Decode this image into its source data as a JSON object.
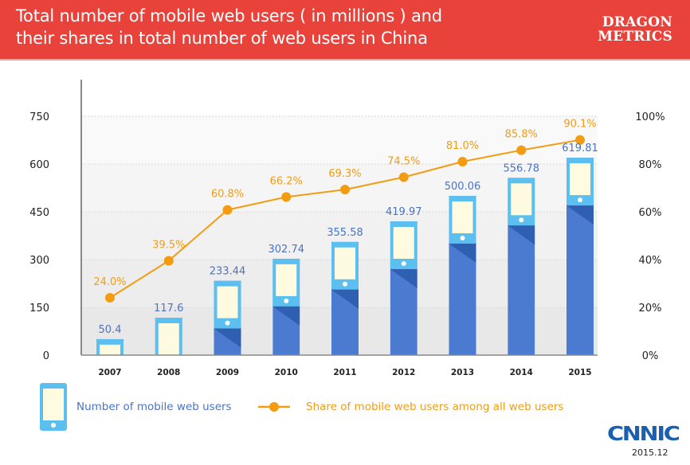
{
  "header": {
    "title_line1": "Total number of mobile web users ( in millions ) and",
    "title_line2": "their shares in total number of web users in China",
    "brand_line1": "DRAGON",
    "brand_line2": "METRICS",
    "background_color": "#e8423a"
  },
  "footer": {
    "source_logo": "CNNIC",
    "source_date": "2015.12"
  },
  "colors": {
    "bar_dark": "#4a7bd0",
    "bar_shadow": "#2f5fb0",
    "phone_frame": "#5bc0ef",
    "phone_screen": "#fffbe0",
    "line": "#f39c12",
    "value_label": "#4a73c4"
  },
  "chart_data": {
    "type": "bar",
    "title": "Total number of mobile web users ( in millions ) and their shares in total number of web users in China",
    "categories": [
      "2007",
      "2008",
      "2009",
      "2010",
      "2011",
      "2012",
      "2013",
      "2014",
      "2015"
    ],
    "series": [
      {
        "name": "Number of mobile web users",
        "type": "bar",
        "axis": "left",
        "values": [
          50.4,
          117.6,
          233.44,
          302.74,
          355.58,
          419.97,
          500.06,
          556.78,
          619.81
        ],
        "labels": [
          "50.4",
          "117.6",
          "233.44",
          "302.74",
          "355.58",
          "419.97",
          "500.06",
          "556.78",
          "619.81"
        ]
      },
      {
        "name": "Share of mobile web users among all web users",
        "type": "line",
        "axis": "right",
        "values": [
          24.0,
          39.5,
          60.8,
          66.2,
          69.3,
          74.5,
          81.0,
          85.8,
          90.1
        ],
        "labels": [
          "24.0%",
          "39.5%",
          "60.8%",
          "66.2%",
          "69.3%",
          "74.5%",
          "81.0%",
          "85.8%",
          "90.1%"
        ]
      }
    ],
    "left_axis": {
      "ylim": [
        0,
        750
      ],
      "ticks": [
        "0",
        "150",
        "300",
        "450",
        "600",
        "750"
      ]
    },
    "right_axis": {
      "ylim": [
        0,
        100
      ],
      "ticks": [
        "0%",
        "20%",
        "40%",
        "60%",
        "80%",
        "100%"
      ]
    },
    "xlabel": "",
    "ylabel": "",
    "grid": true,
    "legend_position": "bottom-left",
    "legend": [
      "Number of mobile web users",
      "Share of mobile web users among all web users"
    ]
  }
}
